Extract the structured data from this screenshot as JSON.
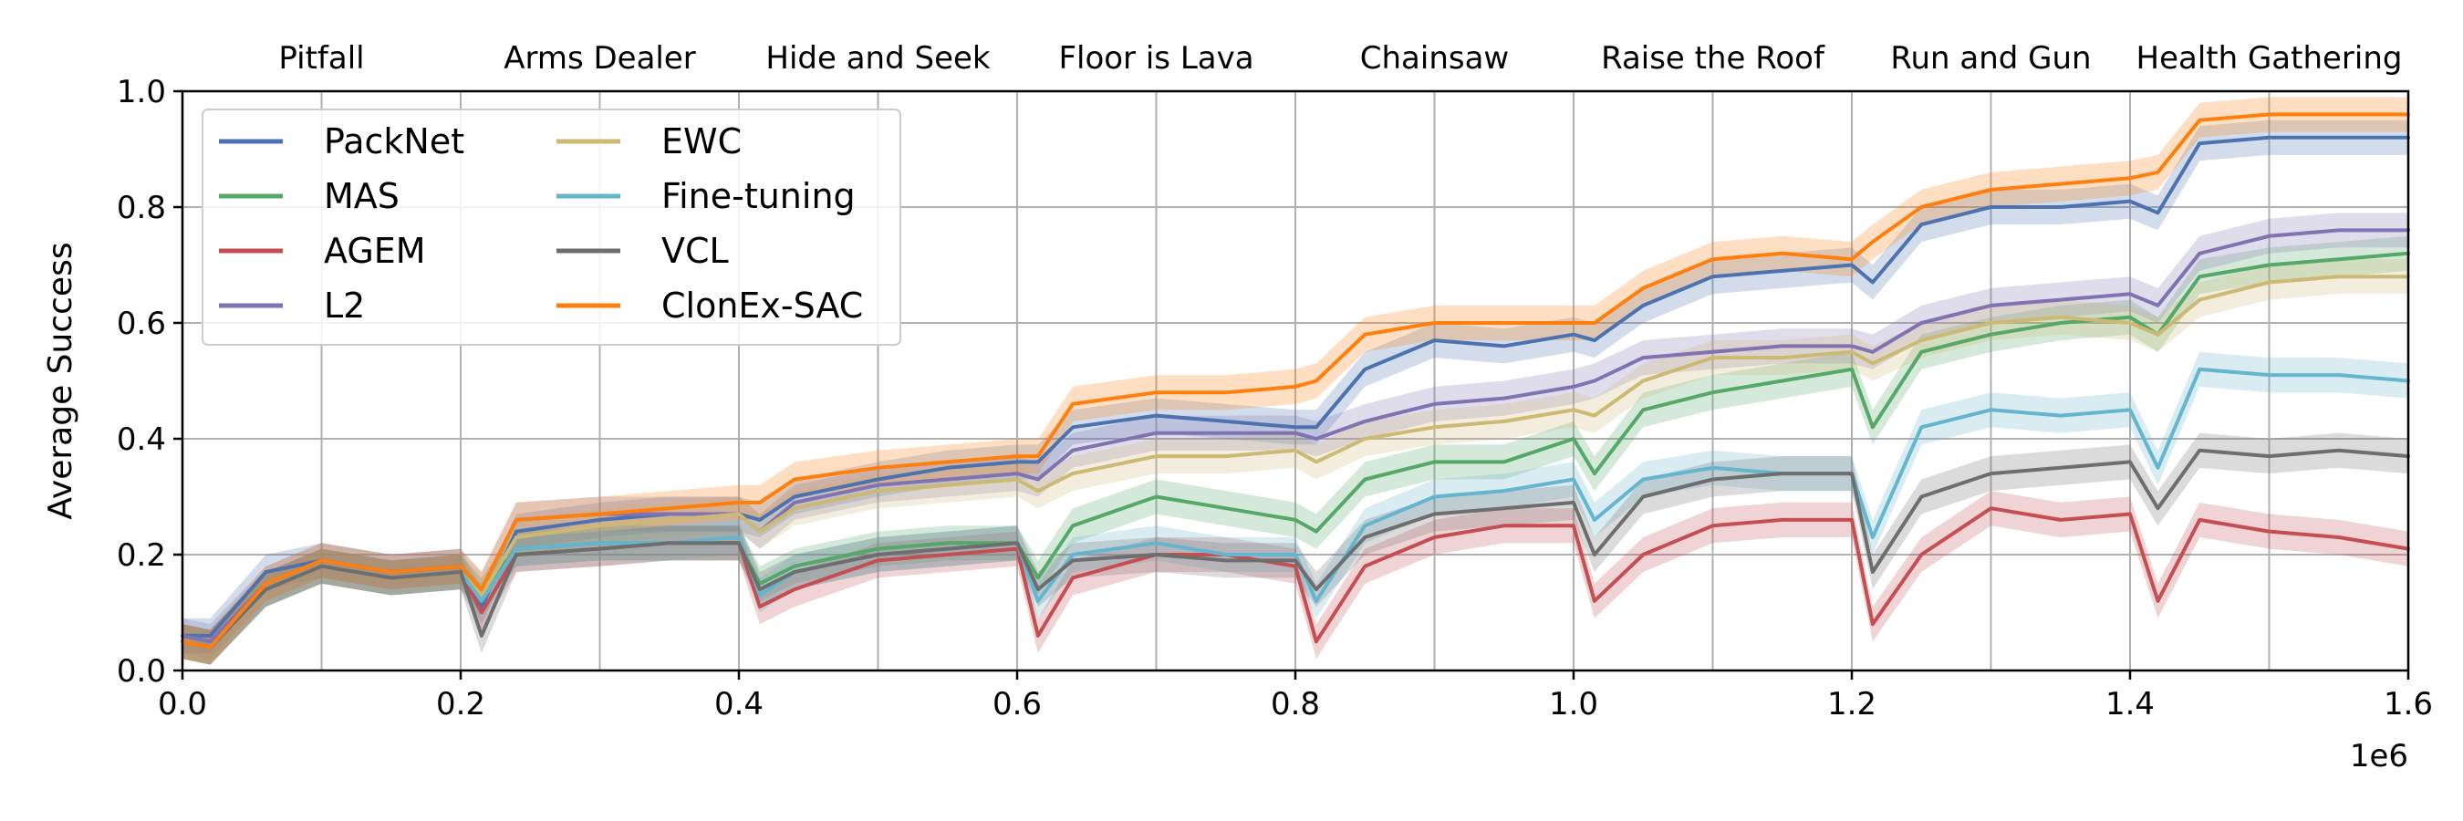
{
  "chart_data": {
    "type": "line",
    "ylabel": "Average Success",
    "xlabel": "",
    "x_exponent_label": "1e6",
    "xlim": [
      0,
      1600000
    ],
    "ylim": [
      0.0,
      1.0
    ],
    "x_ticks": [
      0,
      200000,
      400000,
      600000,
      800000,
      1000000,
      1200000,
      1400000,
      1600000
    ],
    "x_tick_labels": [
      "0.0",
      "0.2",
      "0.4",
      "0.6",
      "0.8",
      "1.0",
      "1.2",
      "1.4",
      "1.6"
    ],
    "y_ticks": [
      0.0,
      0.2,
      0.4,
      0.6,
      0.8,
      1.0
    ],
    "y_tick_labels": [
      "0.0",
      "0.2",
      "0.4",
      "0.6",
      "0.8",
      "1.0"
    ],
    "x_grid": [
      100000,
      200000,
      300000,
      400000,
      500000,
      600000,
      700000,
      800000,
      900000,
      1000000,
      1100000,
      1200000,
      1300000,
      1400000,
      1500000,
      1600000
    ],
    "grid": true,
    "legend_position": "top-left",
    "legend_columns": 2,
    "tasks": [
      "Pitfall",
      "Arms Dealer",
      "Hide and Seek",
      "Floor is Lava",
      "Chainsaw",
      "Raise the Roof",
      "Run and Gun",
      "Health Gathering"
    ],
    "x": [
      0,
      20000,
      60000,
      100000,
      150000,
      200000,
      215000,
      240000,
      300000,
      350000,
      400000,
      415000,
      440000,
      500000,
      550000,
      600000,
      615000,
      640000,
      700000,
      750000,
      800000,
      815000,
      850000,
      900000,
      950000,
      1000000,
      1015000,
      1050000,
      1100000,
      1150000,
      1200000,
      1215000,
      1250000,
      1300000,
      1350000,
      1400000,
      1420000,
      1450000,
      1500000,
      1550000,
      1600000
    ],
    "band_halfwidth": 0.03,
    "series": [
      {
        "name": "PackNet",
        "color": "#4c72b0",
        "values": [
          0.06,
          0.06,
          0.17,
          0.19,
          0.17,
          0.18,
          0.11,
          0.24,
          0.26,
          0.27,
          0.27,
          0.26,
          0.3,
          0.33,
          0.35,
          0.36,
          0.36,
          0.42,
          0.44,
          0.43,
          0.42,
          0.42,
          0.52,
          0.57,
          0.56,
          0.58,
          0.57,
          0.63,
          0.68,
          0.69,
          0.7,
          0.67,
          0.77,
          0.8,
          0.8,
          0.81,
          0.79,
          0.91,
          0.92,
          0.92,
          0.92
        ]
      },
      {
        "name": "MAS",
        "color": "#55a868",
        "values": [
          0.05,
          0.04,
          0.14,
          0.18,
          0.16,
          0.17,
          0.13,
          0.21,
          0.22,
          0.22,
          0.22,
          0.15,
          0.18,
          0.21,
          0.22,
          0.22,
          0.16,
          0.25,
          0.3,
          0.28,
          0.26,
          0.24,
          0.33,
          0.36,
          0.36,
          0.4,
          0.34,
          0.45,
          0.48,
          0.5,
          0.52,
          0.42,
          0.55,
          0.58,
          0.6,
          0.61,
          0.58,
          0.68,
          0.7,
          0.71,
          0.72
        ]
      },
      {
        "name": "AGEM",
        "color": "#c44e52",
        "values": [
          0.05,
          0.04,
          0.14,
          0.18,
          0.16,
          0.17,
          0.1,
          0.2,
          0.21,
          0.22,
          0.22,
          0.11,
          0.14,
          0.19,
          0.2,
          0.21,
          0.06,
          0.16,
          0.2,
          0.2,
          0.18,
          0.05,
          0.18,
          0.23,
          0.25,
          0.25,
          0.12,
          0.2,
          0.25,
          0.26,
          0.26,
          0.08,
          0.2,
          0.28,
          0.26,
          0.27,
          0.12,
          0.26,
          0.24,
          0.23,
          0.21
        ]
      },
      {
        "name": "L2",
        "color": "#8172b2",
        "values": [
          0.06,
          0.05,
          0.15,
          0.19,
          0.17,
          0.18,
          0.14,
          0.26,
          0.27,
          0.27,
          0.27,
          0.24,
          0.29,
          0.32,
          0.33,
          0.34,
          0.33,
          0.38,
          0.41,
          0.41,
          0.41,
          0.4,
          0.43,
          0.46,
          0.47,
          0.49,
          0.5,
          0.54,
          0.55,
          0.56,
          0.56,
          0.55,
          0.6,
          0.63,
          0.64,
          0.65,
          0.63,
          0.72,
          0.75,
          0.76,
          0.76
        ]
      },
      {
        "name": "EWC",
        "color": "#ccb974",
        "values": [
          0.05,
          0.04,
          0.14,
          0.18,
          0.16,
          0.17,
          0.13,
          0.23,
          0.25,
          0.26,
          0.27,
          0.24,
          0.28,
          0.31,
          0.32,
          0.33,
          0.31,
          0.34,
          0.37,
          0.37,
          0.38,
          0.36,
          0.4,
          0.42,
          0.43,
          0.45,
          0.44,
          0.5,
          0.54,
          0.54,
          0.55,
          0.53,
          0.57,
          0.6,
          0.61,
          0.6,
          0.58,
          0.64,
          0.67,
          0.68,
          0.68
        ]
      },
      {
        "name": "Fine-tuning",
        "color": "#64b5cd",
        "values": [
          0.05,
          0.04,
          0.14,
          0.18,
          0.16,
          0.17,
          0.12,
          0.21,
          0.22,
          0.22,
          0.23,
          0.13,
          0.17,
          0.2,
          0.21,
          0.22,
          0.12,
          0.2,
          0.22,
          0.2,
          0.2,
          0.12,
          0.25,
          0.3,
          0.31,
          0.33,
          0.26,
          0.33,
          0.35,
          0.34,
          0.34,
          0.23,
          0.42,
          0.45,
          0.44,
          0.45,
          0.35,
          0.52,
          0.51,
          0.51,
          0.5
        ]
      },
      {
        "name": "VCL",
        "color": "#6e6e6e",
        "values": [
          0.05,
          0.04,
          0.14,
          0.18,
          0.16,
          0.17,
          0.06,
          0.2,
          0.21,
          0.22,
          0.22,
          0.14,
          0.17,
          0.2,
          0.21,
          0.22,
          0.14,
          0.19,
          0.2,
          0.19,
          0.19,
          0.14,
          0.23,
          0.27,
          0.28,
          0.29,
          0.2,
          0.3,
          0.33,
          0.34,
          0.34,
          0.17,
          0.3,
          0.34,
          0.35,
          0.36,
          0.28,
          0.38,
          0.37,
          0.38,
          0.37
        ]
      },
      {
        "name": "ClonEx-SAC",
        "color": "#ff7f0e",
        "values": [
          0.05,
          0.04,
          0.15,
          0.19,
          0.17,
          0.18,
          0.14,
          0.26,
          0.27,
          0.28,
          0.29,
          0.29,
          0.33,
          0.35,
          0.36,
          0.37,
          0.37,
          0.46,
          0.48,
          0.48,
          0.49,
          0.5,
          0.58,
          0.6,
          0.6,
          0.6,
          0.6,
          0.66,
          0.71,
          0.72,
          0.71,
          0.74,
          0.8,
          0.83,
          0.84,
          0.85,
          0.86,
          0.95,
          0.96,
          0.96,
          0.96
        ]
      }
    ]
  }
}
